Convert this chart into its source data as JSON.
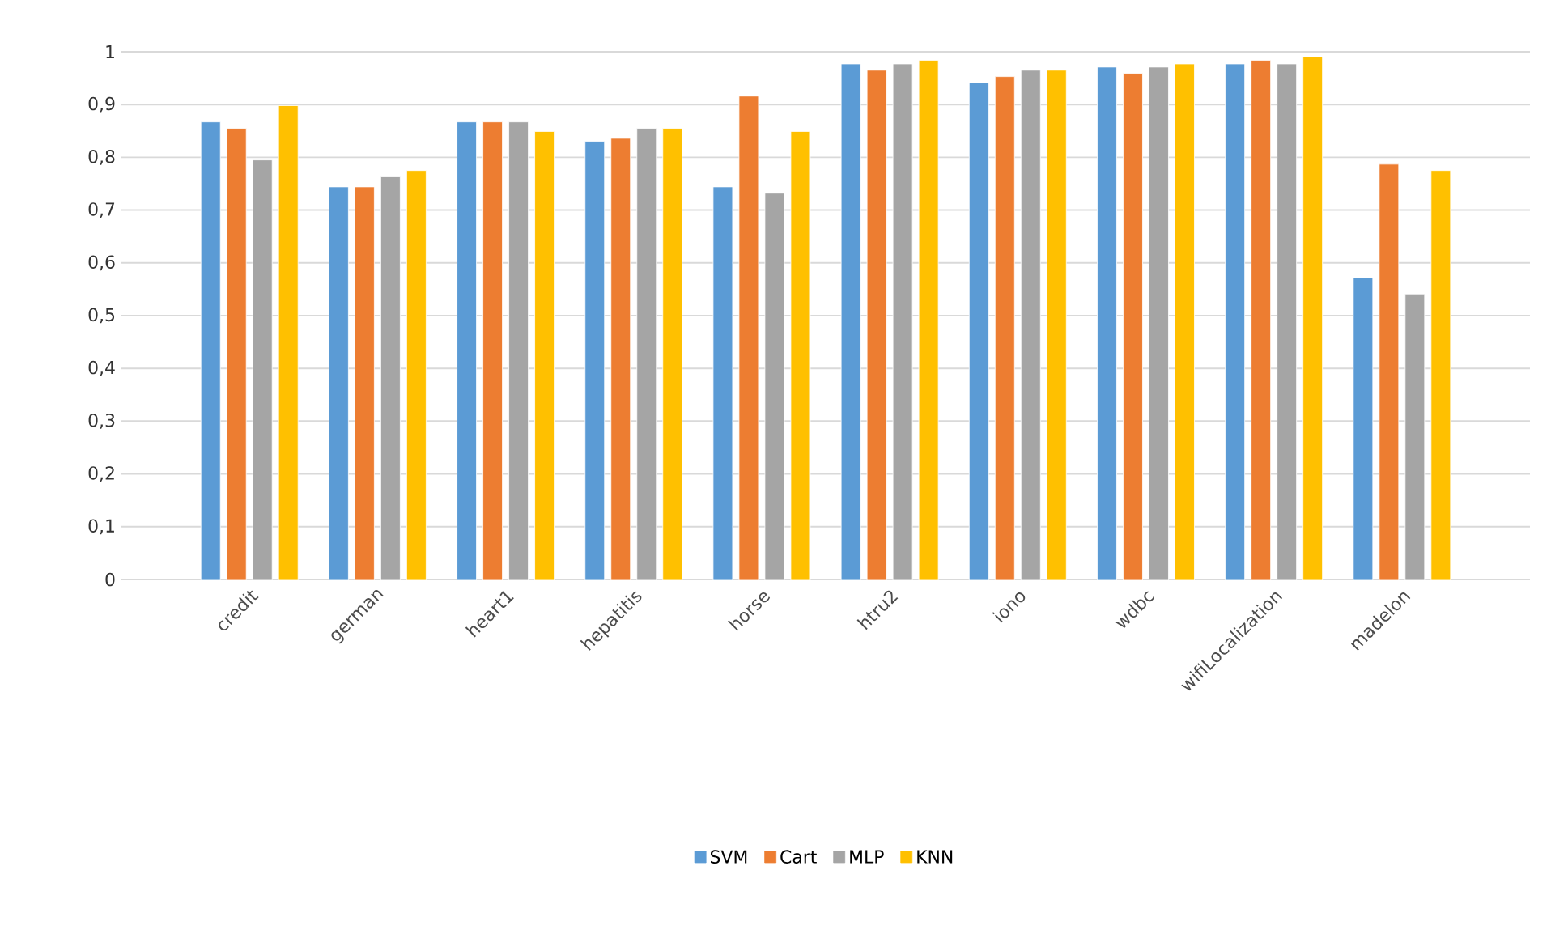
{
  "chart_data": {
    "type": "bar",
    "categories": [
      "credit",
      "german",
      "heart1",
      "hepatitis",
      "horse",
      "htru2",
      "iono",
      "wdbc",
      "wifiLocalization",
      "madelon"
    ],
    "series": [
      {
        "name": "SVM",
        "color": "#5b9bd5",
        "values": [
          0.867,
          0.744,
          0.867,
          0.83,
          0.744,
          0.977,
          0.941,
          0.971,
          0.977,
          0.572
        ]
      },
      {
        "name": "Cart",
        "color": "#ed7d31",
        "values": [
          0.855,
          0.744,
          0.867,
          0.836,
          0.916,
          0.965,
          0.953,
          0.959,
          0.984,
          0.787
        ]
      },
      {
        "name": "MLP",
        "color": "#a5a5a5",
        "values": [
          0.795,
          0.763,
          0.867,
          0.855,
          0.732,
          0.977,
          0.965,
          0.971,
          0.977,
          0.541
        ]
      },
      {
        "name": "KNN",
        "color": "#ffc000",
        "values": [
          0.898,
          0.775,
          0.849,
          0.855,
          0.849,
          0.984,
          0.965,
          0.977,
          0.99,
          0.775
        ]
      }
    ],
    "ylim": [
      0,
      1
    ],
    "yticks": [
      0,
      {
        "value": 0.1,
        "label": "0,1"
      },
      {
        "value": 0.2,
        "label": "0,2"
      },
      {
        "value": 0.3,
        "label": "0,3"
      },
      {
        "value": 0.4,
        "label": "0,4"
      },
      {
        "value": 0.5,
        "label": "0,5"
      },
      {
        "value": 0.6,
        "label": "0,6"
      },
      {
        "value": 0.7,
        "label": "0,7"
      },
      {
        "value": 0.8,
        "label": "0,8"
      },
      {
        "value": 0.9,
        "label": "0,9"
      },
      1
    ],
    "grid": "y",
    "legend": "bottom"
  }
}
